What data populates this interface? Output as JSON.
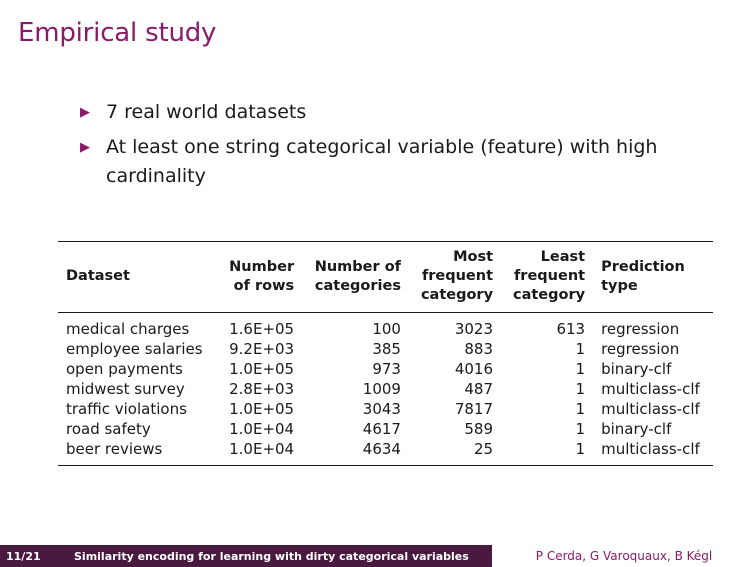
{
  "slide": {
    "title": "Empirical study",
    "bullets": [
      "7 real world datasets",
      "At least one string categorical variable (feature) with high cardinality"
    ]
  },
  "table": {
    "headers": [
      "Dataset",
      "Number\nof rows",
      "Number of\ncategories",
      "Most\nfrequent\ncategory",
      "Least\nfrequent\ncategory",
      "Prediction\ntype"
    ],
    "rows": [
      [
        "medical charges",
        "1.6E+05",
        "100",
        "3023",
        "613",
        "regression"
      ],
      [
        "employee salaries",
        "9.2E+03",
        "385",
        "883",
        "1",
        "regression"
      ],
      [
        "open payments",
        "1.0E+05",
        "973",
        "4016",
        "1",
        "binary-clf"
      ],
      [
        "midwest survey",
        "2.8E+03",
        "1009",
        "487",
        "1",
        "multiclass-clf"
      ],
      [
        "traffic violations",
        "1.0E+05",
        "3043",
        "7817",
        "1",
        "multiclass-clf"
      ],
      [
        "road safety",
        "1.0E+04",
        "4617",
        "589",
        "1",
        "binary-clf"
      ],
      [
        "beer reviews",
        "1.0E+04",
        "4634",
        "25",
        "1",
        "multiclass-clf"
      ]
    ]
  },
  "footer": {
    "page": "11/21",
    "talk_title": "Similarity encoding for learning with dirty categorical variables",
    "authors": "P Cerda, G Varoquaux, B Kégl"
  },
  "colors": {
    "accent": "#8b1a6b",
    "footer_bar": "#4a1940"
  },
  "icons": {
    "bullet": "triangle-right-icon"
  }
}
